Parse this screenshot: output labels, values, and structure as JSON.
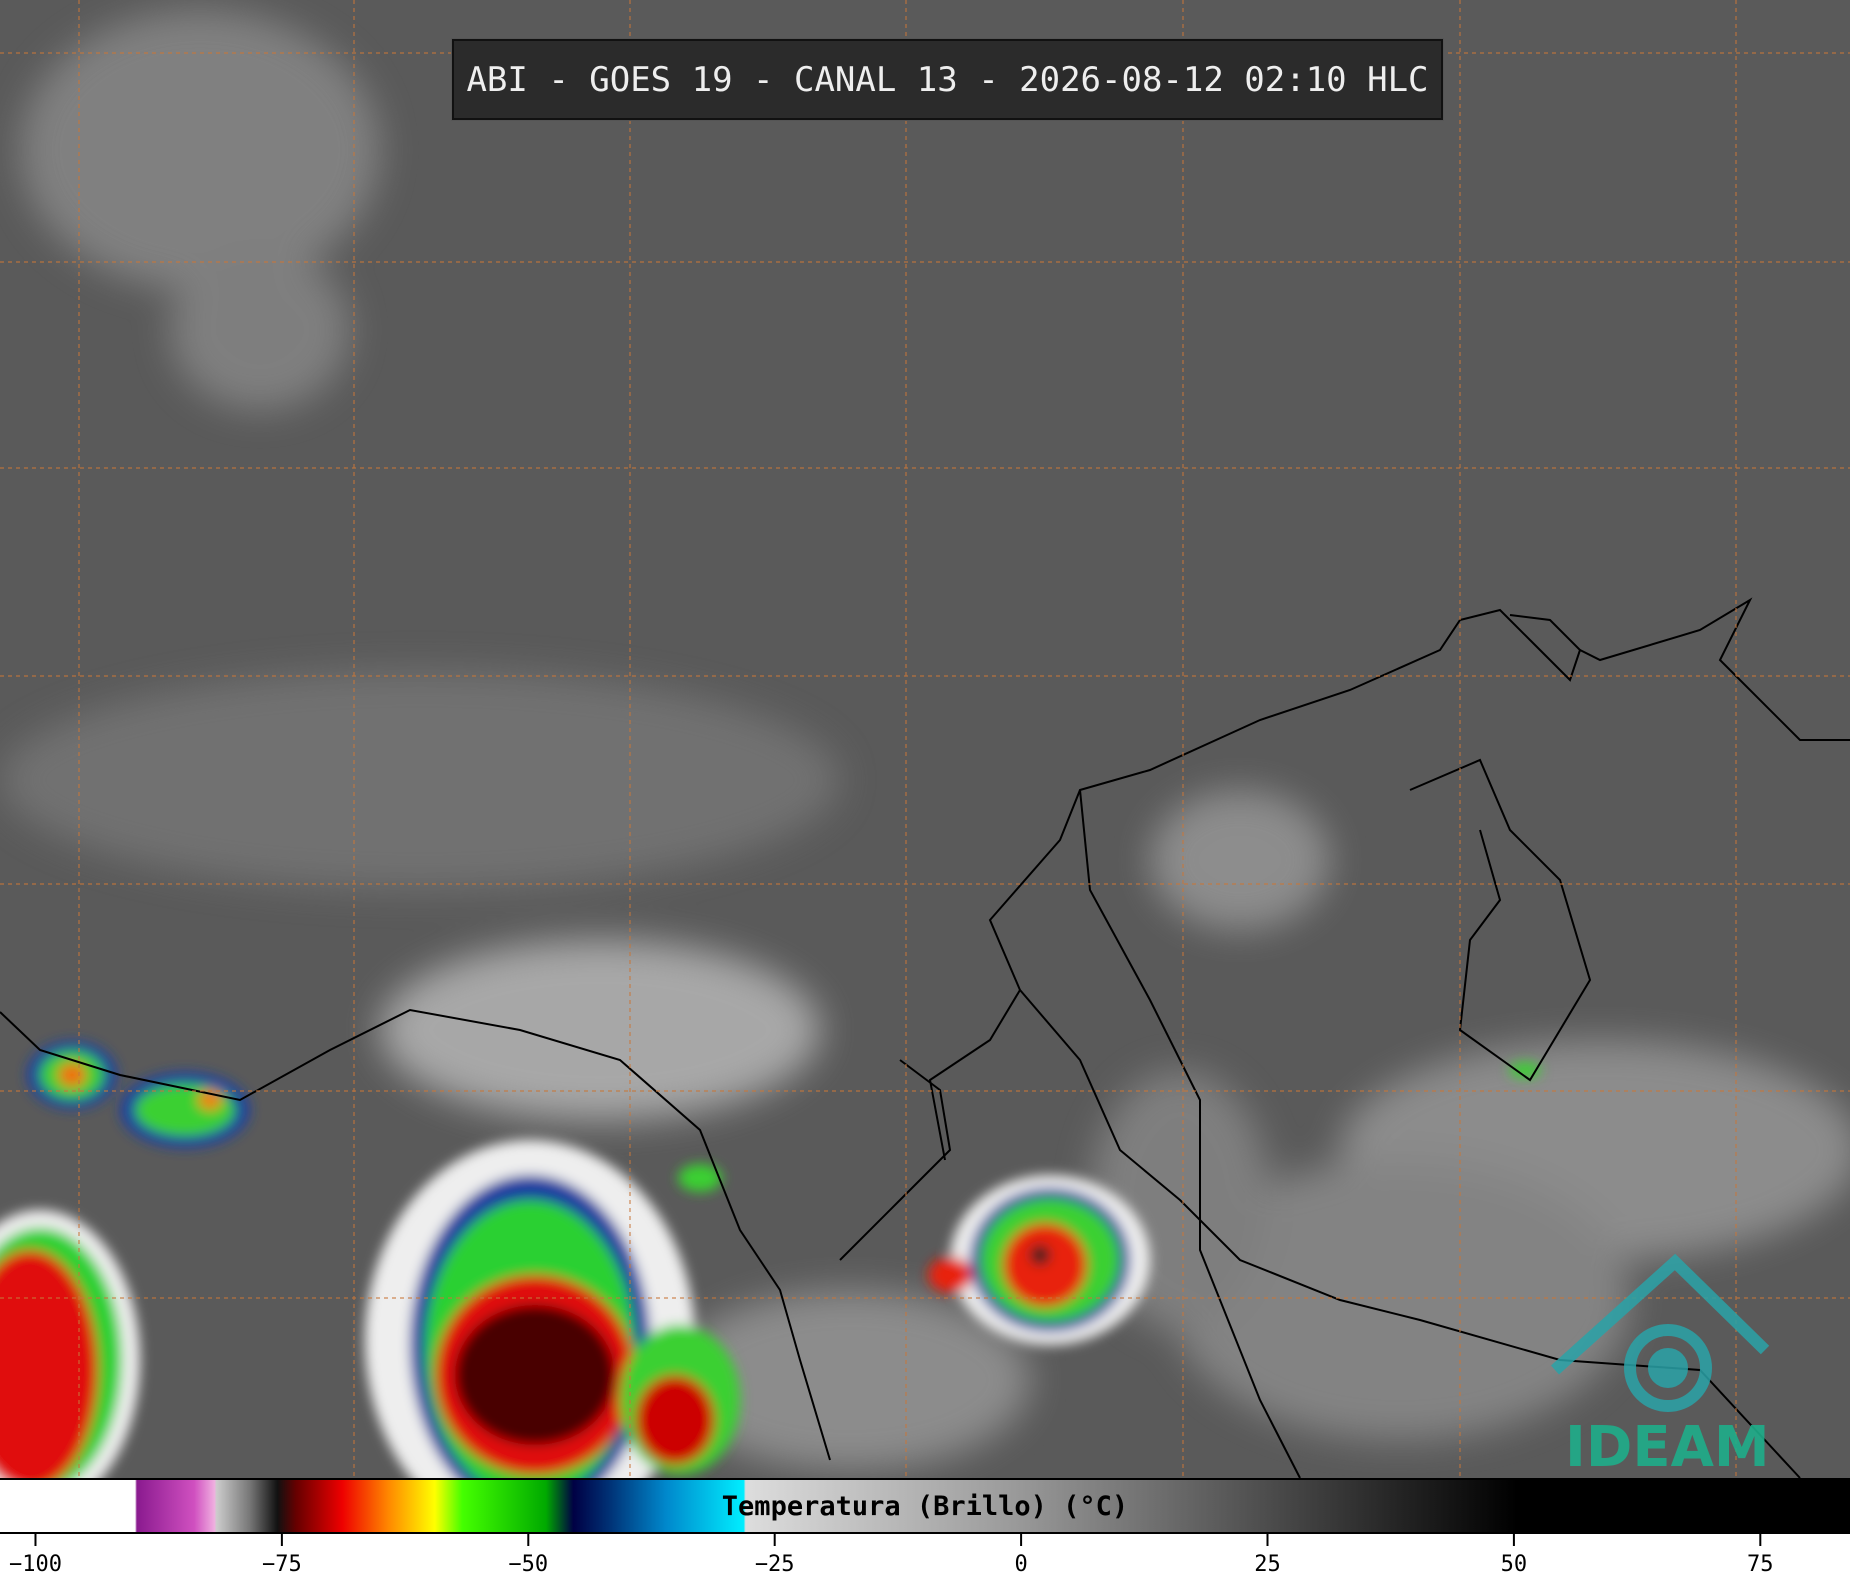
{
  "title": "ABI - GOES 19 - CANAL 13 - 2026-08-12 02:10 HLC",
  "logo": "IDEAM",
  "colorbar": {
    "label": "Temperatura (Brillo) (°C)",
    "lim": [
      -103.6,
      84.1
    ],
    "ticks": [
      {
        "value": -100,
        "label": "−100"
      },
      {
        "value": -75,
        "label": "−75"
      },
      {
        "value": -50,
        "label": "−50"
      },
      {
        "value": -25,
        "label": "−25"
      },
      0,
      25,
      50,
      75
    ]
  }
}
